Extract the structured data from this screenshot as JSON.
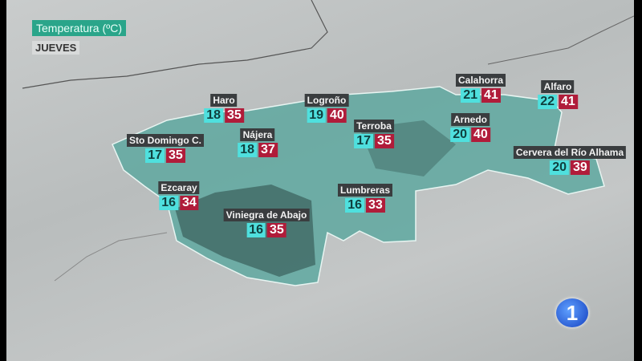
{
  "header": {
    "title": "Temperatura (ºC)",
    "day": "JUEVES"
  },
  "colors": {
    "min": "#4fe0de",
    "max": "#b01c3a",
    "region": "#5fa8a0",
    "title_bg": "#2aa58a"
  },
  "cities": [
    {
      "name": "Haro",
      "min": "18",
      "max": "35"
    },
    {
      "name": "Logroño",
      "min": "19",
      "max": "40"
    },
    {
      "name": "Calahorra",
      "min": "21",
      "max": "41"
    },
    {
      "name": "Alfaro",
      "min": "22",
      "max": "41"
    },
    {
      "name": "Sto Domingo C.",
      "min": "17",
      "max": "35"
    },
    {
      "name": "Nájera",
      "min": "18",
      "max": "37"
    },
    {
      "name": "Terroba",
      "min": "17",
      "max": "35"
    },
    {
      "name": "Arnedo",
      "min": "20",
      "max": "40"
    },
    {
      "name": "Cervera del Río Alhama",
      "min": "20",
      "max": "39"
    },
    {
      "name": "Ezcaray",
      "min": "16",
      "max": "34"
    },
    {
      "name": "Lumbreras",
      "min": "16",
      "max": "33"
    },
    {
      "name": "Viniegra de Abajo",
      "min": "16",
      "max": "35"
    }
  ],
  "logo": {
    "text": "1"
  }
}
